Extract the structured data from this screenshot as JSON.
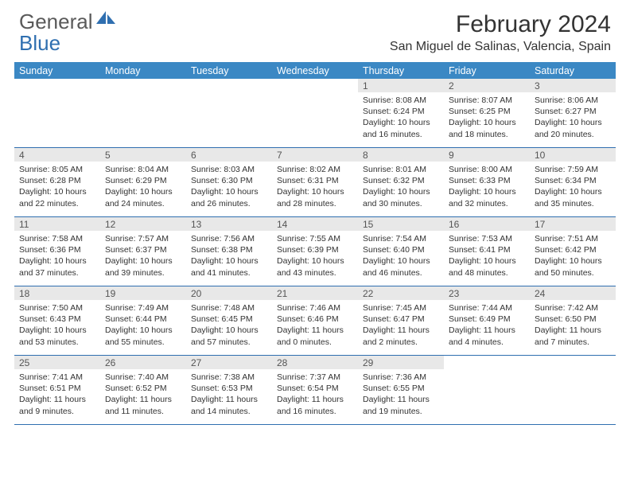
{
  "logo": {
    "gray": "General",
    "blue": "Blue"
  },
  "title": "February 2024",
  "location": "San Miguel de Salinas, Valencia, Spain",
  "colors": {
    "header_bar": "#3b88c4",
    "row_divider": "#2f6fb0",
    "daynum_bg": "#e8e8e8",
    "logo_blue": "#2f6fb0",
    "logo_gray": "#5a5a5a",
    "text": "#333333",
    "page_bg": "#ffffff"
  },
  "weekdays": [
    "Sunday",
    "Monday",
    "Tuesday",
    "Wednesday",
    "Thursday",
    "Friday",
    "Saturday"
  ],
  "weeks": [
    [
      {
        "empty": true
      },
      {
        "empty": true
      },
      {
        "empty": true
      },
      {
        "empty": true
      },
      {
        "num": "1",
        "sunrise": "Sunrise: 8:08 AM",
        "sunset": "Sunset: 6:24 PM",
        "daylight": "Daylight: 10 hours and 16 minutes."
      },
      {
        "num": "2",
        "sunrise": "Sunrise: 8:07 AM",
        "sunset": "Sunset: 6:25 PM",
        "daylight": "Daylight: 10 hours and 18 minutes."
      },
      {
        "num": "3",
        "sunrise": "Sunrise: 8:06 AM",
        "sunset": "Sunset: 6:27 PM",
        "daylight": "Daylight: 10 hours and 20 minutes."
      }
    ],
    [
      {
        "num": "4",
        "sunrise": "Sunrise: 8:05 AM",
        "sunset": "Sunset: 6:28 PM",
        "daylight": "Daylight: 10 hours and 22 minutes."
      },
      {
        "num": "5",
        "sunrise": "Sunrise: 8:04 AM",
        "sunset": "Sunset: 6:29 PM",
        "daylight": "Daylight: 10 hours and 24 minutes."
      },
      {
        "num": "6",
        "sunrise": "Sunrise: 8:03 AM",
        "sunset": "Sunset: 6:30 PM",
        "daylight": "Daylight: 10 hours and 26 minutes."
      },
      {
        "num": "7",
        "sunrise": "Sunrise: 8:02 AM",
        "sunset": "Sunset: 6:31 PM",
        "daylight": "Daylight: 10 hours and 28 minutes."
      },
      {
        "num": "8",
        "sunrise": "Sunrise: 8:01 AM",
        "sunset": "Sunset: 6:32 PM",
        "daylight": "Daylight: 10 hours and 30 minutes."
      },
      {
        "num": "9",
        "sunrise": "Sunrise: 8:00 AM",
        "sunset": "Sunset: 6:33 PM",
        "daylight": "Daylight: 10 hours and 32 minutes."
      },
      {
        "num": "10",
        "sunrise": "Sunrise: 7:59 AM",
        "sunset": "Sunset: 6:34 PM",
        "daylight": "Daylight: 10 hours and 35 minutes."
      }
    ],
    [
      {
        "num": "11",
        "sunrise": "Sunrise: 7:58 AM",
        "sunset": "Sunset: 6:36 PM",
        "daylight": "Daylight: 10 hours and 37 minutes."
      },
      {
        "num": "12",
        "sunrise": "Sunrise: 7:57 AM",
        "sunset": "Sunset: 6:37 PM",
        "daylight": "Daylight: 10 hours and 39 minutes."
      },
      {
        "num": "13",
        "sunrise": "Sunrise: 7:56 AM",
        "sunset": "Sunset: 6:38 PM",
        "daylight": "Daylight: 10 hours and 41 minutes."
      },
      {
        "num": "14",
        "sunrise": "Sunrise: 7:55 AM",
        "sunset": "Sunset: 6:39 PM",
        "daylight": "Daylight: 10 hours and 43 minutes."
      },
      {
        "num": "15",
        "sunrise": "Sunrise: 7:54 AM",
        "sunset": "Sunset: 6:40 PM",
        "daylight": "Daylight: 10 hours and 46 minutes."
      },
      {
        "num": "16",
        "sunrise": "Sunrise: 7:53 AM",
        "sunset": "Sunset: 6:41 PM",
        "daylight": "Daylight: 10 hours and 48 minutes."
      },
      {
        "num": "17",
        "sunrise": "Sunrise: 7:51 AM",
        "sunset": "Sunset: 6:42 PM",
        "daylight": "Daylight: 10 hours and 50 minutes."
      }
    ],
    [
      {
        "num": "18",
        "sunrise": "Sunrise: 7:50 AM",
        "sunset": "Sunset: 6:43 PM",
        "daylight": "Daylight: 10 hours and 53 minutes."
      },
      {
        "num": "19",
        "sunrise": "Sunrise: 7:49 AM",
        "sunset": "Sunset: 6:44 PM",
        "daylight": "Daylight: 10 hours and 55 minutes."
      },
      {
        "num": "20",
        "sunrise": "Sunrise: 7:48 AM",
        "sunset": "Sunset: 6:45 PM",
        "daylight": "Daylight: 10 hours and 57 minutes."
      },
      {
        "num": "21",
        "sunrise": "Sunrise: 7:46 AM",
        "sunset": "Sunset: 6:46 PM",
        "daylight": "Daylight: 11 hours and 0 minutes."
      },
      {
        "num": "22",
        "sunrise": "Sunrise: 7:45 AM",
        "sunset": "Sunset: 6:47 PM",
        "daylight": "Daylight: 11 hours and 2 minutes."
      },
      {
        "num": "23",
        "sunrise": "Sunrise: 7:44 AM",
        "sunset": "Sunset: 6:49 PM",
        "daylight": "Daylight: 11 hours and 4 minutes."
      },
      {
        "num": "24",
        "sunrise": "Sunrise: 7:42 AM",
        "sunset": "Sunset: 6:50 PM",
        "daylight": "Daylight: 11 hours and 7 minutes."
      }
    ],
    [
      {
        "num": "25",
        "sunrise": "Sunrise: 7:41 AM",
        "sunset": "Sunset: 6:51 PM",
        "daylight": "Daylight: 11 hours and 9 minutes."
      },
      {
        "num": "26",
        "sunrise": "Sunrise: 7:40 AM",
        "sunset": "Sunset: 6:52 PM",
        "daylight": "Daylight: 11 hours and 11 minutes."
      },
      {
        "num": "27",
        "sunrise": "Sunrise: 7:38 AM",
        "sunset": "Sunset: 6:53 PM",
        "daylight": "Daylight: 11 hours and 14 minutes."
      },
      {
        "num": "28",
        "sunrise": "Sunrise: 7:37 AM",
        "sunset": "Sunset: 6:54 PM",
        "daylight": "Daylight: 11 hours and 16 minutes."
      },
      {
        "num": "29",
        "sunrise": "Sunrise: 7:36 AM",
        "sunset": "Sunset: 6:55 PM",
        "daylight": "Daylight: 11 hours and 19 minutes."
      },
      {
        "empty": true
      },
      {
        "empty": true
      }
    ]
  ]
}
